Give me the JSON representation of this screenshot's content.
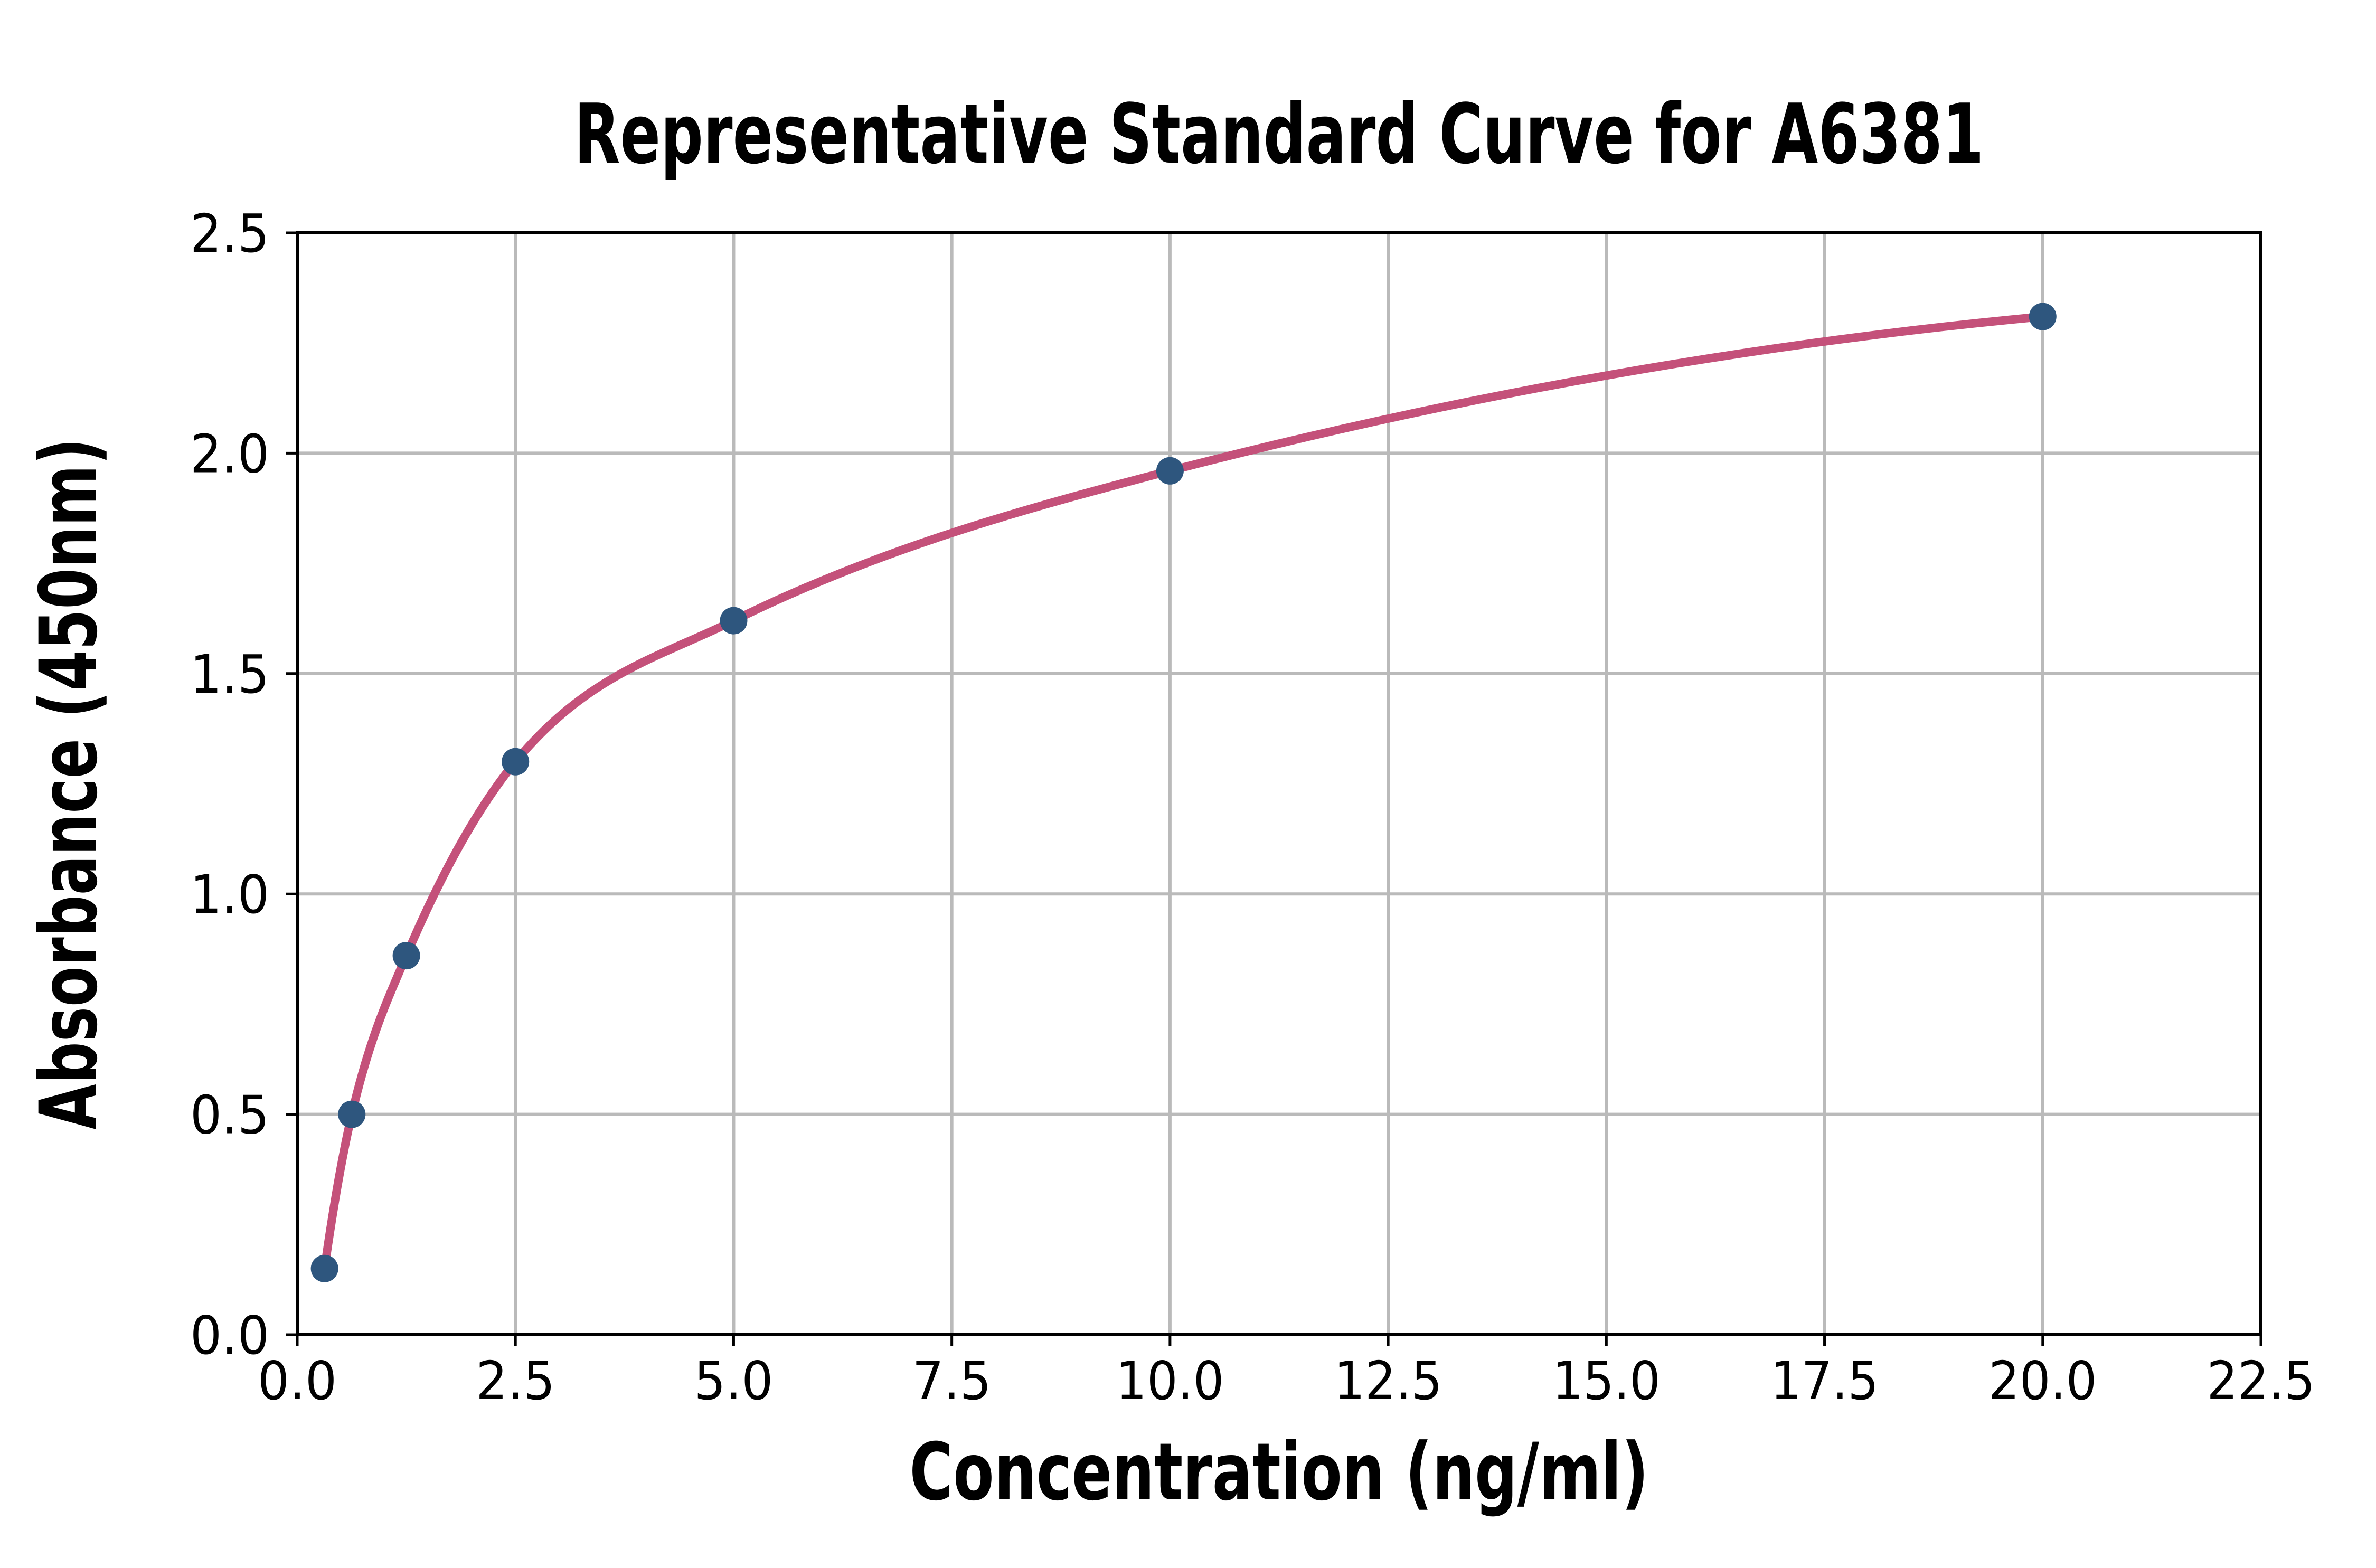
{
  "figure": {
    "background": "#ffffff"
  },
  "chart_data": {
    "type": "scatter",
    "title": "Representative Standard Curve for A6381",
    "xlabel": "Concentration (ng/ml)",
    "ylabel": "Absorbance (450nm)",
    "x": [
      0.3125,
      0.625,
      1.25,
      2.5,
      5,
      10,
      20
    ],
    "y": [
      0.15,
      0.5,
      0.86,
      1.3,
      1.62,
      1.96,
      2.31
    ],
    "fitted_curve": true,
    "xlim": [
      0,
      22.5
    ],
    "ylim": [
      0,
      2.5
    ],
    "xticks": [
      "0.0",
      "2.5",
      "5.0",
      "7.5",
      "10.0",
      "12.5",
      "15.0",
      "17.5",
      "20.0",
      "22.5"
    ],
    "yticks": [
      "0.0",
      "0.5",
      "1.0",
      "1.5",
      "2.0",
      "2.5"
    ],
    "grid": true,
    "legend": "none",
    "colors": {
      "curve": "#c4517a",
      "marker": "#2e567e",
      "grid": "#bababa",
      "axis": "#000000",
      "background": "#ffffff"
    }
  }
}
